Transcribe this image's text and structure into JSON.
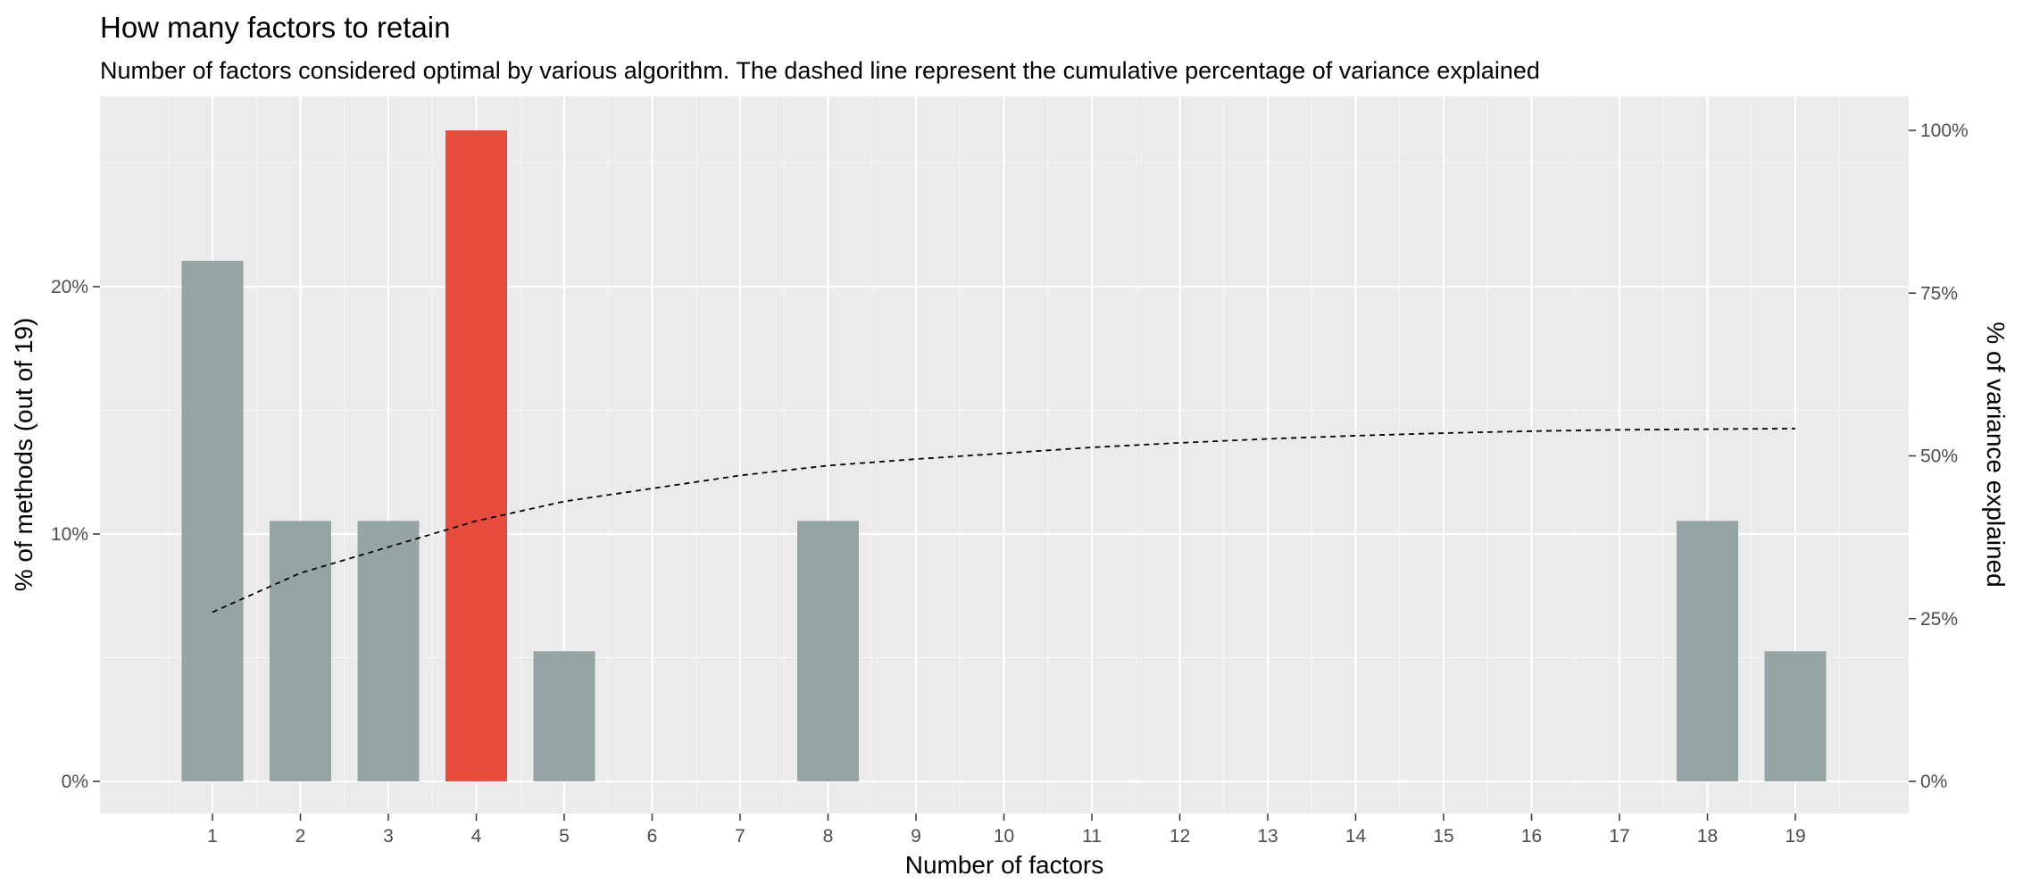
{
  "chart_data": {
    "type": "bar",
    "title": "How many factors to retain",
    "subtitle": "Number of factors considered optimal by various algorithm. The dashed line represent the cumulative percentage of variance explained",
    "xlabel": "Number of factors",
    "ylabel": "% of methods (out of 19)",
    "y2label": "% of variance explained",
    "categories": [
      1,
      2,
      3,
      4,
      5,
      6,
      7,
      8,
      9,
      10,
      11,
      12,
      13,
      14,
      15,
      16,
      17,
      18,
      19
    ],
    "x_tick_labels": [
      "1",
      "2",
      "3",
      "4",
      "5",
      "6",
      "7",
      "8",
      "9",
      "10",
      "11",
      "12",
      "13",
      "14",
      "15",
      "16",
      "17",
      "18",
      "19"
    ],
    "values": [
      21.05,
      10.53,
      10.53,
      26.32,
      5.26,
      0,
      0,
      10.53,
      0,
      0,
      0,
      0,
      0,
      0,
      0,
      0,
      0,
      10.53,
      5.26
    ],
    "highlight_category": 4,
    "ylim": [
      0,
      26.32
    ],
    "y_ticks": [
      0,
      10,
      20
    ],
    "y_tick_labels": [
      "0%",
      "10%",
      "20%"
    ],
    "y2lim": [
      0,
      100
    ],
    "y2_ticks": [
      0,
      25,
      50,
      75,
      100
    ],
    "y2_tick_labels": [
      "0%",
      "25%",
      "50%",
      "75%",
      "100%"
    ],
    "cumulative_variance": {
      "line_style": "dashed",
      "x": [
        1,
        2,
        3,
        4,
        5,
        6,
        7,
        8,
        9,
        10,
        11,
        12,
        13,
        14,
        15,
        16,
        17,
        18,
        19
      ],
      "y": [
        26,
        32,
        36,
        40,
        43,
        45,
        47,
        48.5,
        49.5,
        50.4,
        51.3,
        52,
        52.6,
        53.1,
        53.5,
        53.8,
        54,
        54.1,
        54.2
      ]
    },
    "grid": true,
    "legend": "none",
    "colors": {
      "panel_bg": "#ebebeb",
      "grid_major": "#ffffff",
      "bar": "#95a5a6",
      "highlight": "#e74c3c",
      "line": "#000000"
    }
  }
}
